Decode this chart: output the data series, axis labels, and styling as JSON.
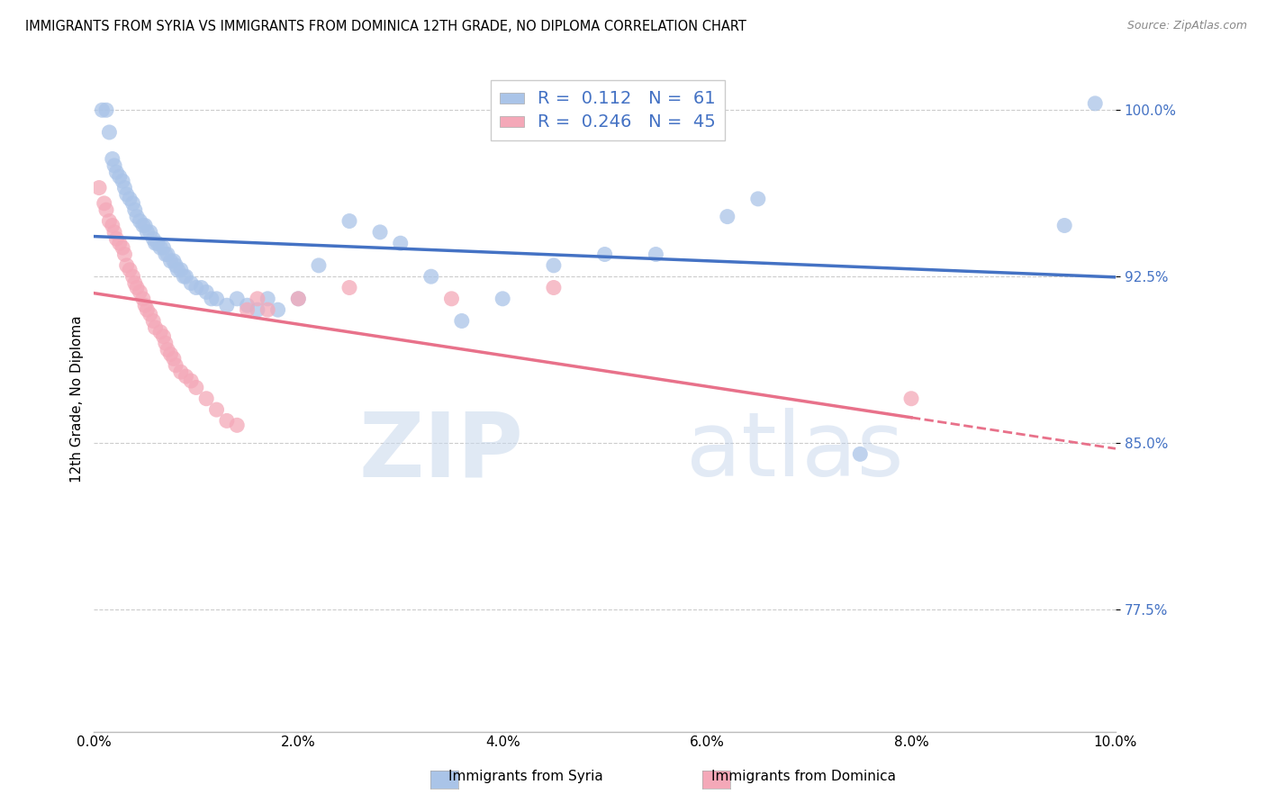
{
  "title": "IMMIGRANTS FROM SYRIA VS IMMIGRANTS FROM DOMINICA 12TH GRADE, NO DIPLOMA CORRELATION CHART",
  "source": "Source: ZipAtlas.com",
  "ylabel": "12th Grade, No Diploma",
  "xlim": [
    0.0,
    10.0
  ],
  "ylim": [
    72.0,
    102.0
  ],
  "xtick_values": [
    0.0,
    2.0,
    4.0,
    6.0,
    8.0,
    10.0
  ],
  "right_ytick_values": [
    77.5,
    85.0,
    92.5,
    100.0
  ],
  "right_yticklabels": [
    "77.5%",
    "85.0%",
    "92.5%",
    "100.0%"
  ],
  "grid_color": "#cccccc",
  "background_color": "#ffffff",
  "syria_color": "#aac4e8",
  "dominica_color": "#f4a8b8",
  "syria_line_color": "#4472c4",
  "dominica_line_color": "#e8718a",
  "legend_color": "#4472c4",
  "syria_R": 0.112,
  "syria_N": 61,
  "dominica_R": 0.246,
  "dominica_N": 45,
  "watermark_zip": "ZIP",
  "watermark_atlas": "atlas",
  "syria_scatter": [
    [
      0.08,
      100.0
    ],
    [
      0.12,
      100.0
    ],
    [
      0.15,
      99.0
    ],
    [
      0.18,
      97.8
    ],
    [
      0.2,
      97.5
    ],
    [
      0.22,
      97.2
    ],
    [
      0.25,
      97.0
    ],
    [
      0.28,
      96.8
    ],
    [
      0.3,
      96.5
    ],
    [
      0.32,
      96.2
    ],
    [
      0.35,
      96.0
    ],
    [
      0.38,
      95.8
    ],
    [
      0.4,
      95.5
    ],
    [
      0.42,
      95.2
    ],
    [
      0.45,
      95.0
    ],
    [
      0.48,
      94.8
    ],
    [
      0.5,
      94.8
    ],
    [
      0.52,
      94.5
    ],
    [
      0.55,
      94.5
    ],
    [
      0.58,
      94.2
    ],
    [
      0.6,
      94.0
    ],
    [
      0.62,
      94.0
    ],
    [
      0.65,
      93.8
    ],
    [
      0.68,
      93.8
    ],
    [
      0.7,
      93.5
    ],
    [
      0.72,
      93.5
    ],
    [
      0.75,
      93.2
    ],
    [
      0.78,
      93.2
    ],
    [
      0.8,
      93.0
    ],
    [
      0.82,
      92.8
    ],
    [
      0.85,
      92.8
    ],
    [
      0.88,
      92.5
    ],
    [
      0.9,
      92.5
    ],
    [
      0.95,
      92.2
    ],
    [
      1.0,
      92.0
    ],
    [
      1.05,
      92.0
    ],
    [
      1.1,
      91.8
    ],
    [
      1.15,
      91.5
    ],
    [
      1.2,
      91.5
    ],
    [
      1.3,
      91.2
    ],
    [
      1.4,
      91.5
    ],
    [
      1.5,
      91.2
    ],
    [
      1.6,
      91.0
    ],
    [
      1.7,
      91.5
    ],
    [
      1.8,
      91.0
    ],
    [
      2.0,
      91.5
    ],
    [
      2.2,
      93.0
    ],
    [
      2.5,
      95.0
    ],
    [
      2.8,
      94.5
    ],
    [
      3.0,
      94.0
    ],
    [
      3.3,
      92.5
    ],
    [
      3.6,
      90.5
    ],
    [
      4.0,
      91.5
    ],
    [
      4.5,
      93.0
    ],
    [
      5.0,
      93.5
    ],
    [
      5.5,
      93.5
    ],
    [
      6.2,
      95.2
    ],
    [
      6.5,
      96.0
    ],
    [
      7.5,
      84.5
    ],
    [
      9.8,
      100.3
    ],
    [
      9.5,
      94.8
    ]
  ],
  "dominica_scatter": [
    [
      0.05,
      96.5
    ],
    [
      0.1,
      95.8
    ],
    [
      0.12,
      95.5
    ],
    [
      0.15,
      95.0
    ],
    [
      0.18,
      94.8
    ],
    [
      0.2,
      94.5
    ],
    [
      0.22,
      94.2
    ],
    [
      0.25,
      94.0
    ],
    [
      0.28,
      93.8
    ],
    [
      0.3,
      93.5
    ],
    [
      0.32,
      93.0
    ],
    [
      0.35,
      92.8
    ],
    [
      0.38,
      92.5
    ],
    [
      0.4,
      92.2
    ],
    [
      0.42,
      92.0
    ],
    [
      0.45,
      91.8
    ],
    [
      0.48,
      91.5
    ],
    [
      0.5,
      91.2
    ],
    [
      0.52,
      91.0
    ],
    [
      0.55,
      90.8
    ],
    [
      0.58,
      90.5
    ],
    [
      0.6,
      90.2
    ],
    [
      0.65,
      90.0
    ],
    [
      0.68,
      89.8
    ],
    [
      0.7,
      89.5
    ],
    [
      0.72,
      89.2
    ],
    [
      0.75,
      89.0
    ],
    [
      0.78,
      88.8
    ],
    [
      0.8,
      88.5
    ],
    [
      0.85,
      88.2
    ],
    [
      0.9,
      88.0
    ],
    [
      0.95,
      87.8
    ],
    [
      1.0,
      87.5
    ],
    [
      1.1,
      87.0
    ],
    [
      1.2,
      86.5
    ],
    [
      1.3,
      86.0
    ],
    [
      1.4,
      85.8
    ],
    [
      1.5,
      91.0
    ],
    [
      1.6,
      91.5
    ],
    [
      1.7,
      91.0
    ],
    [
      2.0,
      91.5
    ],
    [
      2.5,
      92.0
    ],
    [
      3.5,
      91.5
    ],
    [
      4.5,
      92.0
    ],
    [
      8.0,
      87.0
    ]
  ]
}
